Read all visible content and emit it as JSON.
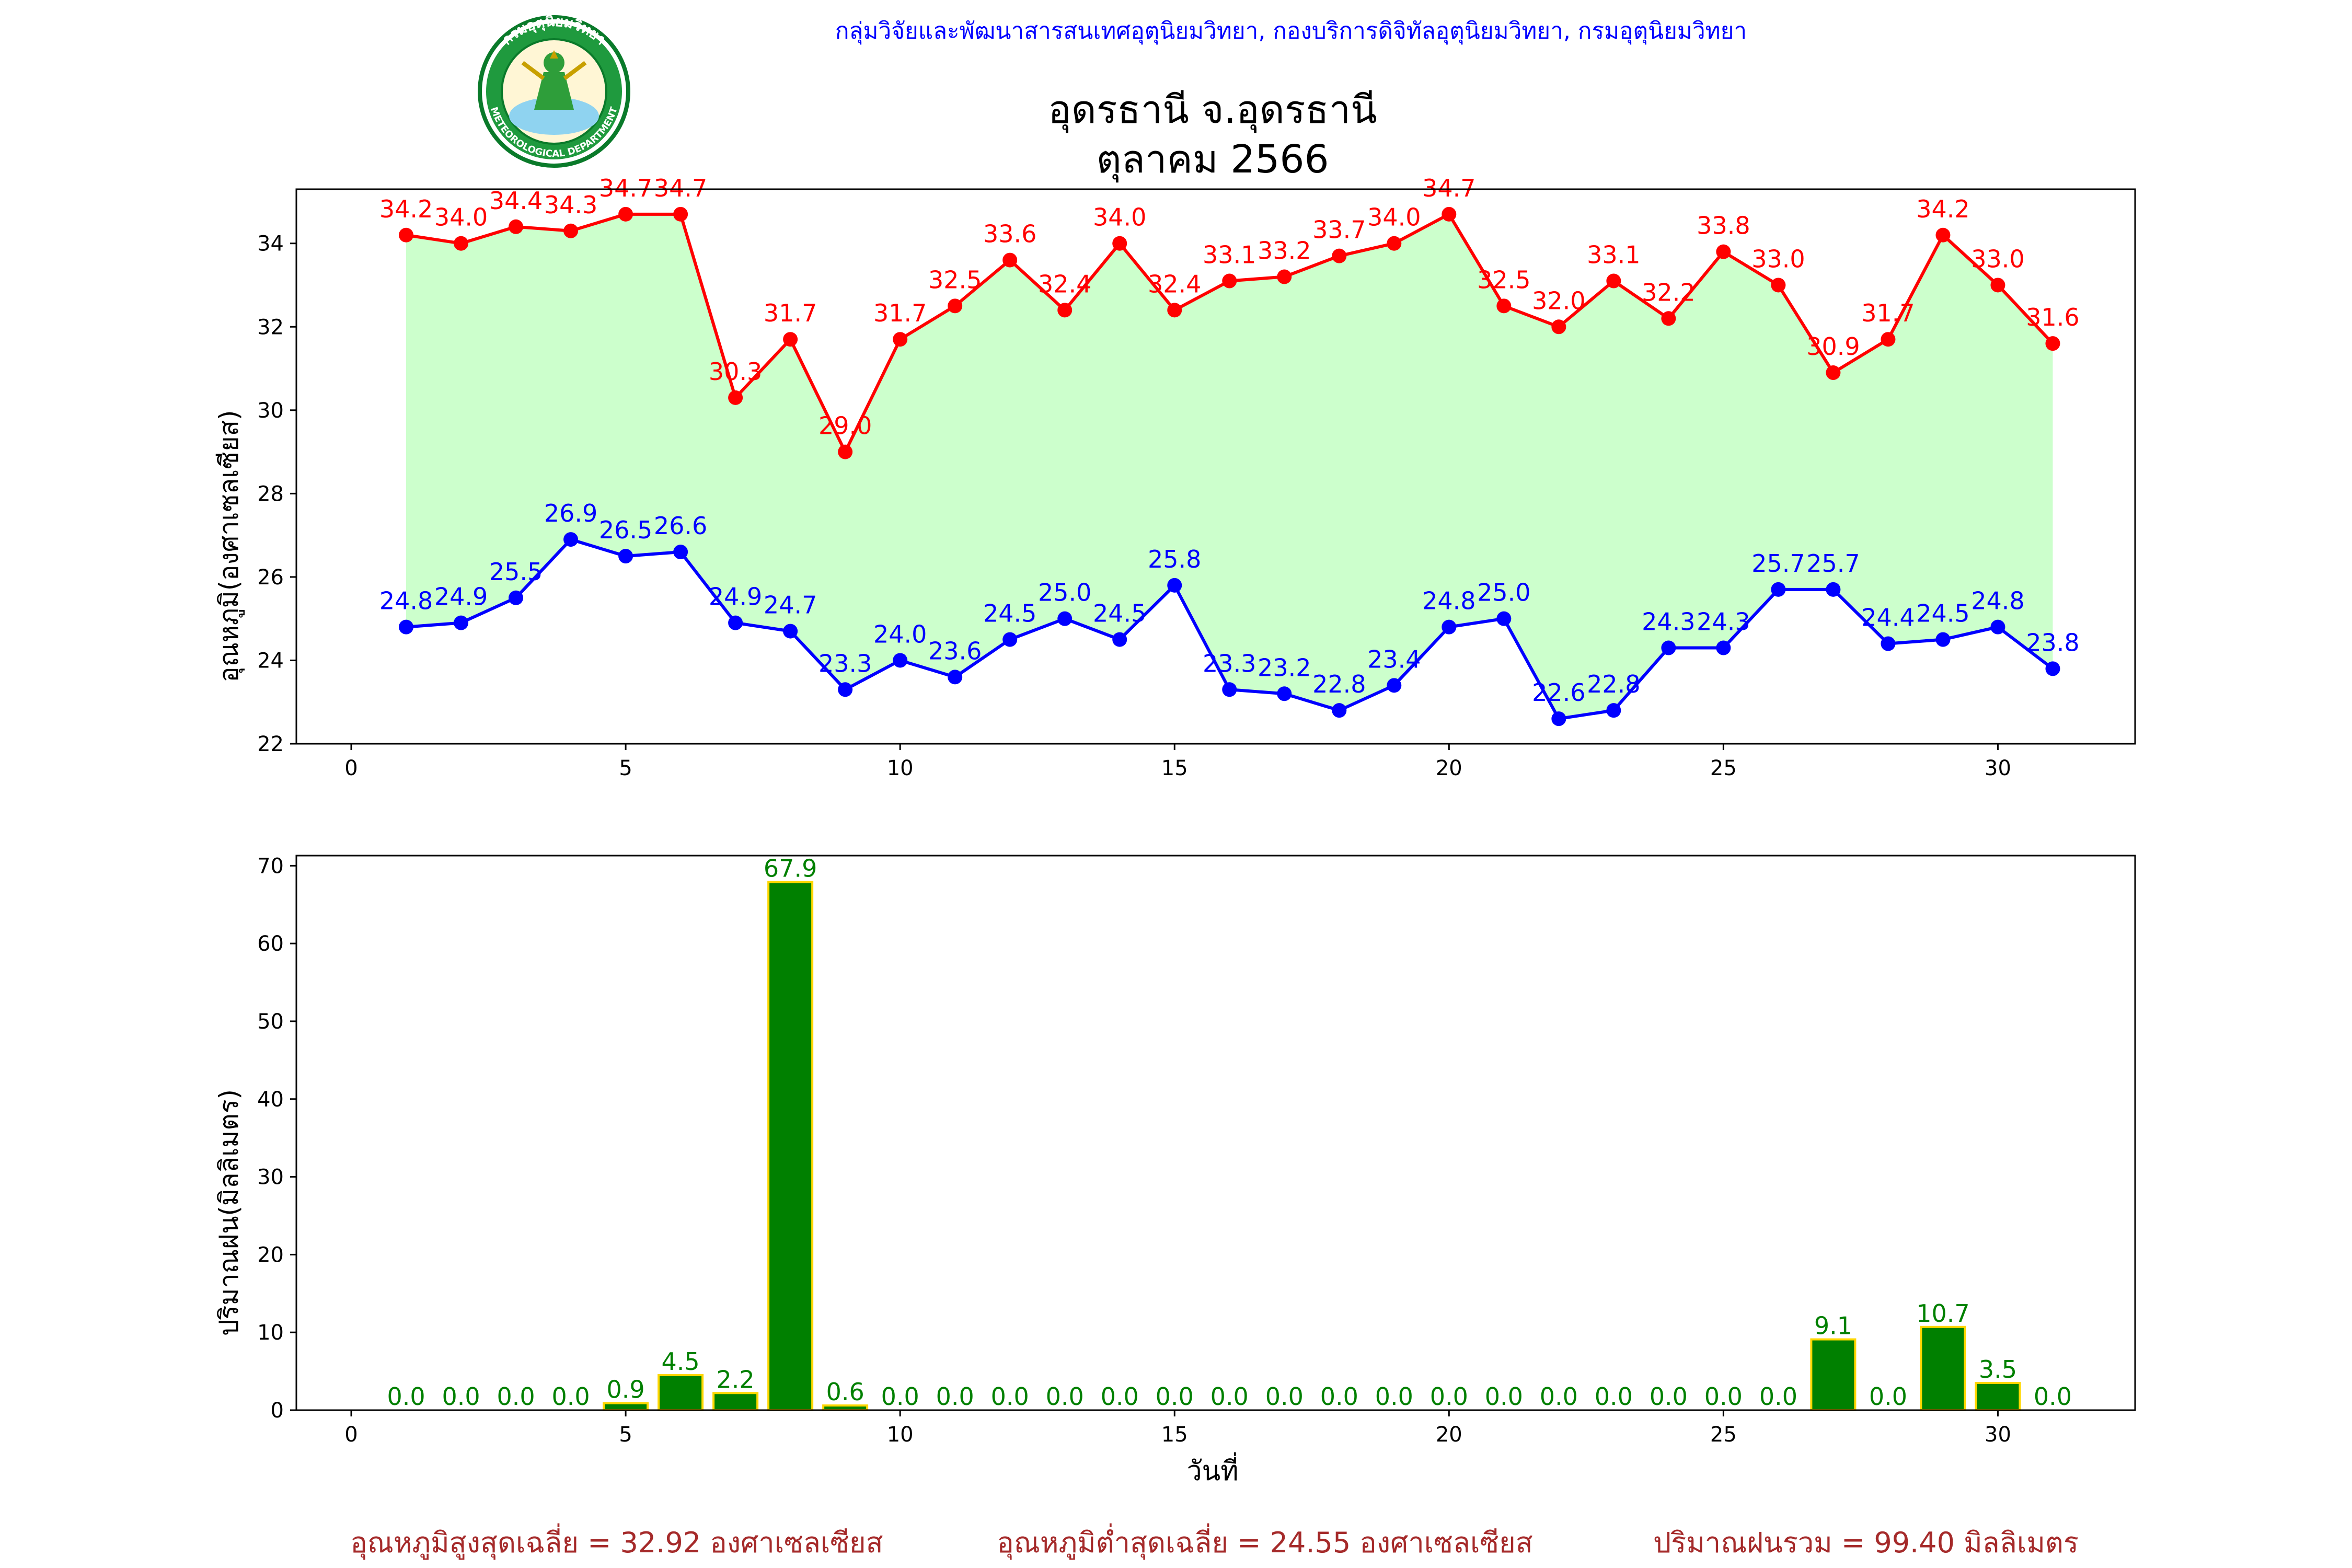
{
  "header": {
    "agency": "กลุ่มวิจัยและพัฒนาสารสนเทศอุตุนิยมวิทยา, กองบริการดิจิทัลอุตุนิยมวิทยา, กรมอุตุนิยมวิทยา",
    "title_line1": "อุดรธานี จ.อุดรธานี",
    "title_line2": "ตุลาคม 2566",
    "logo_top_text": "กรมอุตุนิยมวิทยา",
    "logo_bottom_text": "METEOROLOGICAL DEPARTMENT"
  },
  "colors": {
    "max_line": "#ff0000",
    "min_line": "#0000ff",
    "fill": "#ccffcc",
    "bar": "#008000",
    "bar_edge": "#ffd700",
    "header_text": "#0000ff",
    "footer_text": "#a52a2a"
  },
  "chart_data": [
    {
      "type": "line",
      "ylabel": "อุณหภูมิ(องศาเซลเซียส)",
      "xlim": [
        -1,
        32.5
      ],
      "ylim": [
        22,
        35.3
      ],
      "xticks": [
        0,
        5,
        10,
        15,
        20,
        25,
        30
      ],
      "yticks": [
        22,
        24,
        26,
        28,
        30,
        32,
        34
      ],
      "fill_between": true,
      "x": [
        1,
        2,
        3,
        4,
        5,
        6,
        7,
        8,
        9,
        10,
        11,
        12,
        13,
        14,
        15,
        16,
        17,
        18,
        19,
        20,
        21,
        22,
        23,
        24,
        25,
        26,
        27,
        28,
        29,
        30,
        31
      ],
      "series": [
        {
          "key": "max",
          "values": [
            34.2,
            34.0,
            34.4,
            34.3,
            34.7,
            34.7,
            30.3,
            31.7,
            29.0,
            31.7,
            32.5,
            33.6,
            32.4,
            34.0,
            32.4,
            33.1,
            33.2,
            33.7,
            34.0,
            34.7,
            32.5,
            32.0,
            33.1,
            32.2,
            33.8,
            33.0,
            30.9,
            31.7,
            34.2,
            33.0,
            31.6
          ]
        },
        {
          "key": "min",
          "values": [
            24.8,
            24.9,
            25.5,
            26.9,
            26.5,
            26.6,
            24.9,
            24.7,
            23.3,
            24.0,
            23.6,
            24.5,
            25.0,
            24.5,
            25.8,
            23.3,
            23.2,
            22.8,
            23.4,
            24.8,
            25.0,
            22.6,
            22.8,
            24.3,
            24.3,
            25.7,
            25.7,
            24.4,
            24.5,
            24.8,
            23.8
          ]
        }
      ]
    },
    {
      "type": "bar",
      "xlabel": "วันที่",
      "ylabel": "ปริมาณฝน(มิลลิเมตร)",
      "xlim": [
        -1,
        32.5
      ],
      "ylim": [
        0,
        71.3
      ],
      "xticks": [
        0,
        5,
        10,
        15,
        20,
        25,
        30
      ],
      "yticks": [
        0,
        10,
        20,
        30,
        40,
        50,
        60,
        70
      ],
      "x": [
        1,
        2,
        3,
        4,
        5,
        6,
        7,
        8,
        9,
        10,
        11,
        12,
        13,
        14,
        15,
        16,
        17,
        18,
        19,
        20,
        21,
        22,
        23,
        24,
        25,
        26,
        27,
        28,
        29,
        30,
        31
      ],
      "values": [
        0.0,
        0.0,
        0.0,
        0.0,
        0.9,
        4.5,
        2.2,
        67.9,
        0.6,
        0.0,
        0.0,
        0.0,
        0.0,
        0.0,
        0.0,
        0.0,
        0.0,
        0.0,
        0.0,
        0.0,
        0.0,
        0.0,
        0.0,
        0.0,
        0.0,
        0.0,
        9.1,
        0.0,
        10.7,
        3.5,
        0.0
      ]
    }
  ],
  "footer": {
    "avg_max": "อุณหภูมิสูงสุดเฉลี่ย = 32.92 องศาเซลเซียส",
    "avg_min": "อุณหภูมิต่ำสุดเฉลี่ย = 24.55 องศาเซลเซียส",
    "total_rain": "ปริมาณฝนรวม = 99.40 มิลลิเมตร"
  }
}
